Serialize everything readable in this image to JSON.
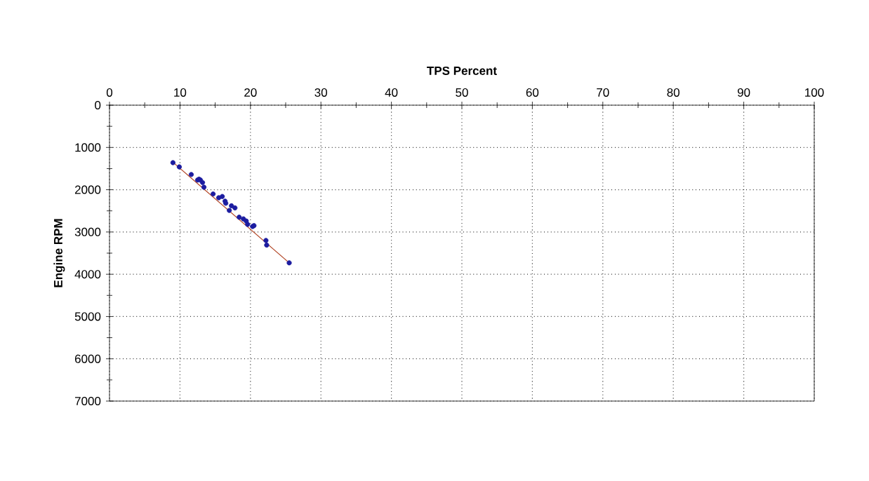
{
  "chart_data": {
    "type": "scatter",
    "xlabel": "TPS Percent",
    "ylabel": "Engine RPM",
    "xlim": [
      0,
      100
    ],
    "xticks": [
      0,
      10,
      20,
      30,
      40,
      50,
      60,
      70,
      80,
      90,
      100
    ],
    "ylim": [
      7000,
      0
    ],
    "yticks": [
      0,
      1000,
      2000,
      3000,
      4000,
      5000,
      6000,
      7000
    ],
    "grid": true,
    "series": [
      {
        "marker": "circle",
        "color": "#1c1ca0",
        "x": [
          9.0,
          9.9,
          11.6,
          12.5,
          12.7,
          12.9,
          13.2,
          13.4,
          14.7,
          15.5,
          16.0,
          16.4,
          16.5,
          17.0,
          17.3,
          17.8,
          18.4,
          19.0,
          19.4,
          19.6,
          20.3,
          20.5,
          22.2,
          22.3,
          25.5
        ],
        "values": [
          1360,
          1460,
          1640,
          1770,
          1750,
          1770,
          1830,
          1940,
          2100,
          2190,
          2160,
          2270,
          2320,
          2490,
          2380,
          2430,
          2650,
          2690,
          2740,
          2820,
          2870,
          2850,
          3200,
          3310,
          3730
        ]
      },
      {
        "type": "line",
        "marker": "none",
        "line_style": "solid",
        "color": "#b04020",
        "x": [
          9.0,
          25.5
        ],
        "values": [
          1350,
          3730
        ]
      }
    ]
  }
}
